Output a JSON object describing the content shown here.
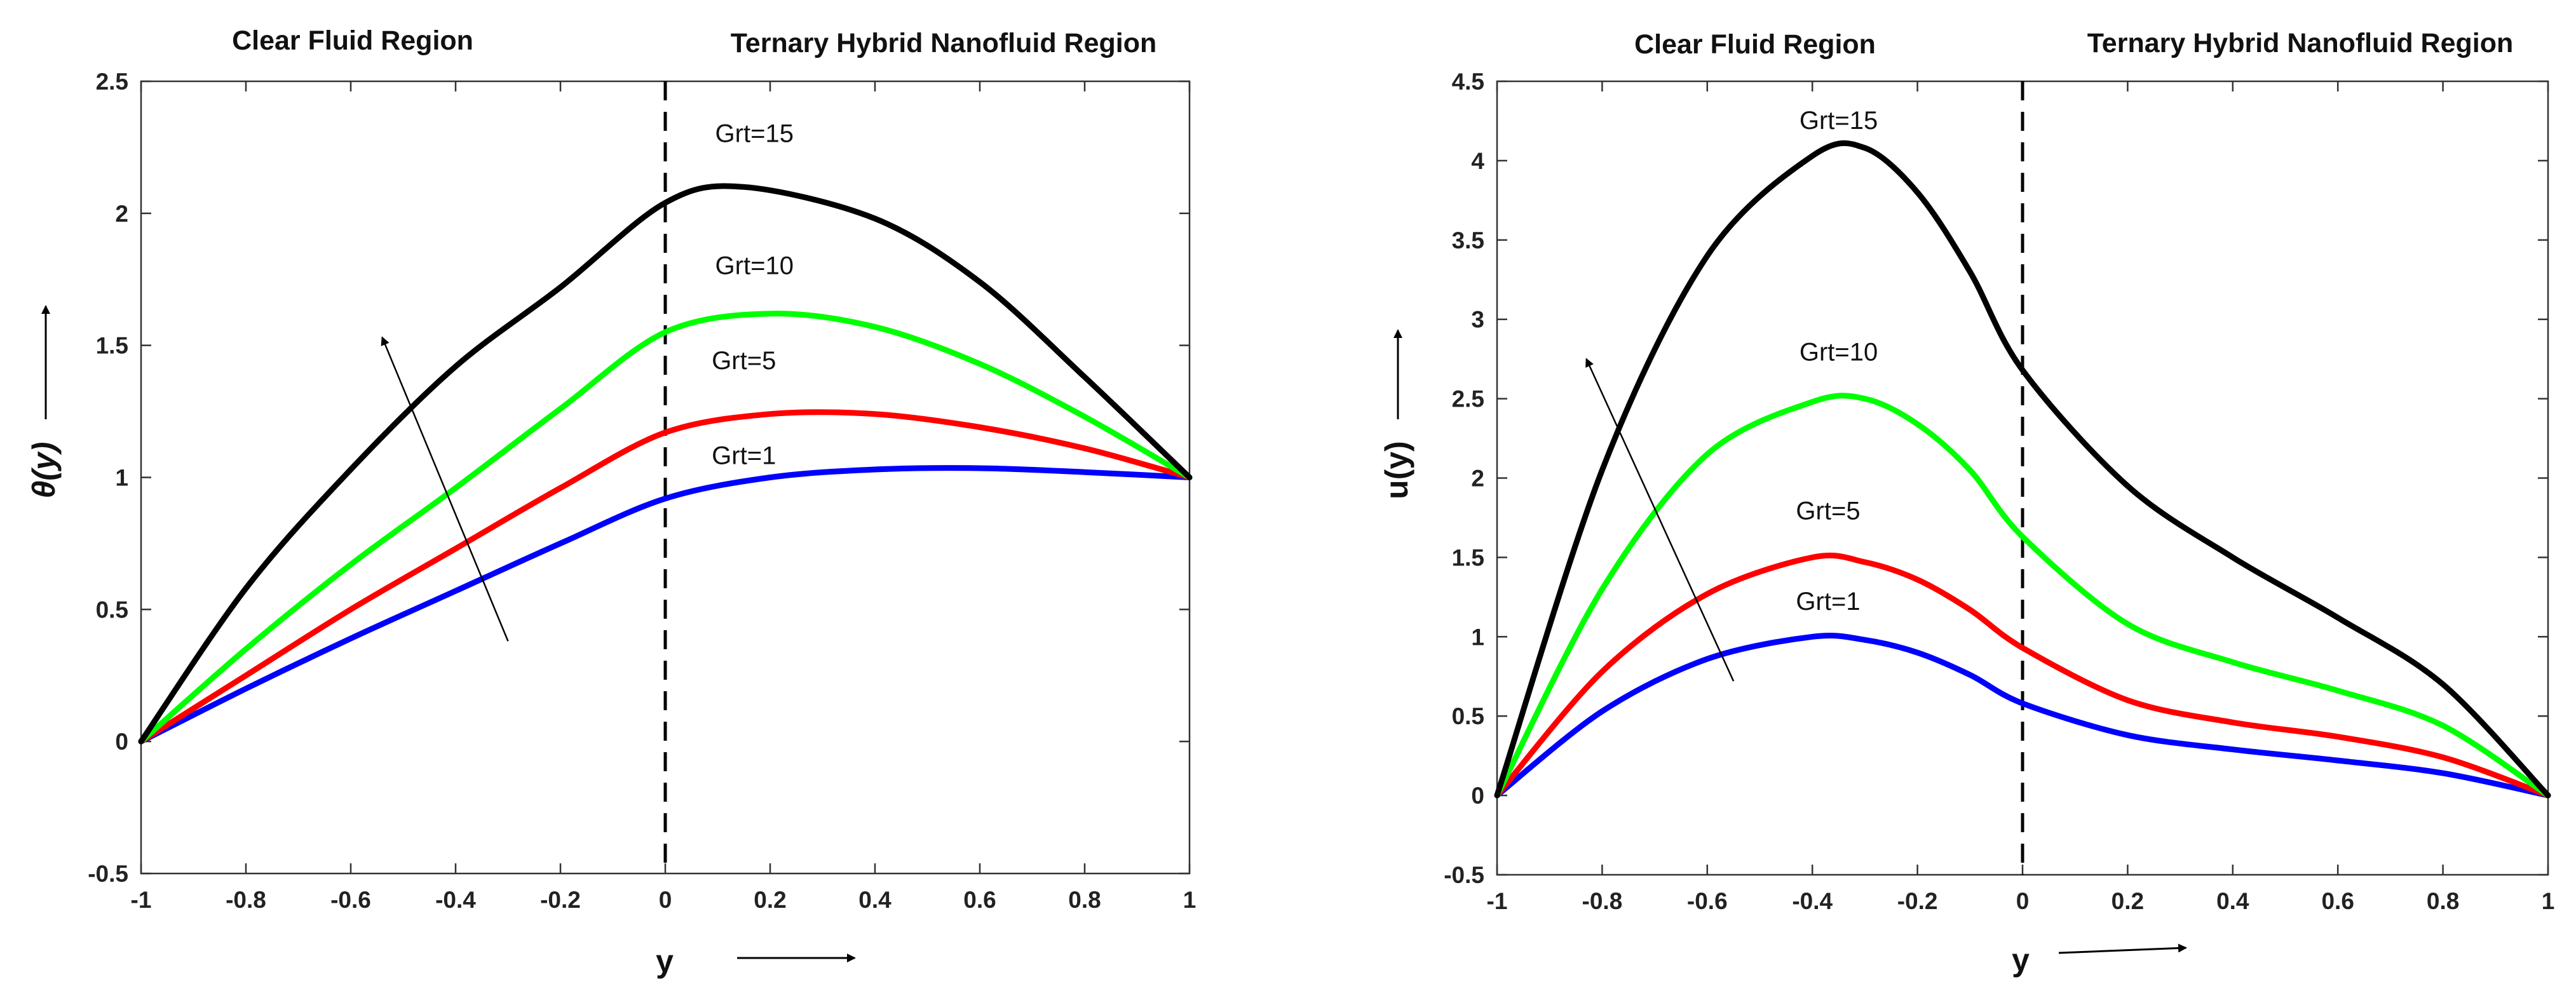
{
  "chart_data": [
    {
      "type": "line",
      "title": "",
      "xlabel": "y",
      "ylabel": "θ(y)",
      "xlim": [
        -1,
        1
      ],
      "ylim": [
        -0.5,
        2.5
      ],
      "xticks": [
        "-1",
        "-0.8",
        "-0.6",
        "-0.4",
        "-0.2",
        "0",
        "0.2",
        "0.4",
        "0.6",
        "0.8",
        "1"
      ],
      "yticks": [
        "-0.5",
        "0",
        "0.5",
        "1",
        "1.5",
        "2",
        "2.5"
      ],
      "region_labels": [
        "Clear Fluid Region",
        "Ternary Hybrid Nanofluid Region"
      ],
      "interface_x": 0,
      "series": [
        {
          "name": "Grt=1",
          "color": "#0000ff",
          "x": [
            -1,
            -0.8,
            -0.6,
            -0.4,
            -0.2,
            0,
            0.2,
            0.4,
            0.6,
            0.8,
            1
          ],
          "y": [
            0,
            0.2,
            0.39,
            0.57,
            0.75,
            0.92,
            1.0,
            1.03,
            1.035,
            1.02,
            1.0
          ]
        },
        {
          "name": "Grt=5",
          "color": "#ff0000",
          "x": [
            -1,
            -0.8,
            -0.6,
            -0.4,
            -0.2,
            0,
            0.2,
            0.4,
            0.6,
            0.8,
            1
          ],
          "y": [
            0,
            0.25,
            0.5,
            0.73,
            0.96,
            1.17,
            1.24,
            1.24,
            1.19,
            1.11,
            1.0
          ]
        },
        {
          "name": "Grt=10",
          "color": "#00ff00",
          "x": [
            -1,
            -0.8,
            -0.6,
            -0.4,
            -0.2,
            0,
            0.2,
            0.4,
            0.6,
            0.8,
            1
          ],
          "y": [
            0,
            0.35,
            0.67,
            0.96,
            1.26,
            1.55,
            1.62,
            1.57,
            1.43,
            1.23,
            1.0
          ]
        },
        {
          "name": "Grt=15",
          "color": "#000000",
          "x": [
            -1,
            -0.8,
            -0.6,
            -0.4,
            -0.2,
            0,
            0.15,
            0.4,
            0.6,
            0.8,
            1
          ],
          "y": [
            0,
            0.58,
            1.03,
            1.42,
            1.72,
            2.04,
            2.1,
            1.98,
            1.74,
            1.38,
            1.0
          ]
        }
      ],
      "annotations": [
        {
          "text": "Grt=15",
          "x": 0.17,
          "y": 2.27
        },
        {
          "text": "Grt=10",
          "x": 0.17,
          "y": 1.77
        },
        {
          "text": "Grt=5",
          "x": 0.15,
          "y": 1.41
        },
        {
          "text": "Grt=1",
          "x": 0.15,
          "y": 1.05
        }
      ],
      "trend_arrow": {
        "from": [
          -0.3,
          0.38
        ],
        "to": [
          -0.54,
          1.53
        ]
      }
    },
    {
      "type": "line",
      "title": "",
      "xlabel": "y",
      "ylabel": "u(y)",
      "xlim": [
        -1,
        1
      ],
      "ylim": [
        -0.5,
        4.5
      ],
      "xticks": [
        "-1",
        "-0.8",
        "-0.6",
        "-0.4",
        "-0.2",
        "0",
        "0.2",
        "0.4",
        "0.6",
        "0.8",
        "1"
      ],
      "yticks": [
        "-0.5",
        "0",
        "0.5",
        "1",
        "1.5",
        "2",
        "2.5",
        "3",
        "3.5",
        "4",
        "4.5"
      ],
      "region_labels": [
        "Clear Fluid Region",
        "Ternary Hybrid Nanofluid Region"
      ],
      "interface_x": 0,
      "series": [
        {
          "name": "Grt=1",
          "color": "#0000ff",
          "x": [
            -1,
            -0.8,
            -0.6,
            -0.4,
            -0.3,
            -0.2,
            -0.1,
            0,
            0.2,
            0.4,
            0.6,
            0.8,
            1
          ],
          "y": [
            0,
            0.53,
            0.86,
            1.0,
            0.98,
            0.9,
            0.76,
            0.58,
            0.38,
            0.29,
            0.22,
            0.14,
            0
          ]
        },
        {
          "name": "Grt=5",
          "color": "#ff0000",
          "x": [
            -1,
            -0.8,
            -0.6,
            -0.4,
            -0.3,
            -0.2,
            -0.1,
            0,
            0.2,
            0.4,
            0.6,
            0.8,
            1
          ],
          "y": [
            0,
            0.78,
            1.27,
            1.5,
            1.47,
            1.36,
            1.17,
            0.93,
            0.6,
            0.46,
            0.37,
            0.24,
            0
          ]
        },
        {
          "name": "Grt=10",
          "color": "#00ff00",
          "x": [
            -1,
            -0.8,
            -0.6,
            -0.4,
            -0.3,
            -0.2,
            -0.1,
            0,
            0.2,
            0.4,
            0.6,
            0.8,
            1
          ],
          "y": [
            0,
            1.3,
            2.15,
            2.48,
            2.5,
            2.34,
            2.05,
            1.63,
            1.08,
            0.84,
            0.66,
            0.44,
            0
          ]
        },
        {
          "name": "Grt=15",
          "color": "#000000",
          "x": [
            -1,
            -0.8,
            -0.6,
            -0.4,
            -0.3,
            -0.2,
            -0.1,
            0,
            0.2,
            0.4,
            0.6,
            0.8,
            1
          ],
          "y": [
            0,
            2.05,
            3.4,
            4.03,
            4.08,
            3.8,
            3.3,
            2.68,
            1.95,
            1.5,
            1.12,
            0.7,
            0
          ]
        }
      ],
      "annotations": [
        {
          "text": "Grt=15",
          "x": -0.35,
          "y": 4.2
        },
        {
          "text": "Grt=10",
          "x": -0.35,
          "y": 2.74
        },
        {
          "text": "Grt=5",
          "x": -0.37,
          "y": 1.74
        },
        {
          "text": "Grt=1",
          "x": -0.37,
          "y": 1.17
        }
      ],
      "trend_arrow": {
        "from": [
          -0.55,
          0.72
        ],
        "to": [
          -0.83,
          2.75
        ]
      }
    }
  ]
}
